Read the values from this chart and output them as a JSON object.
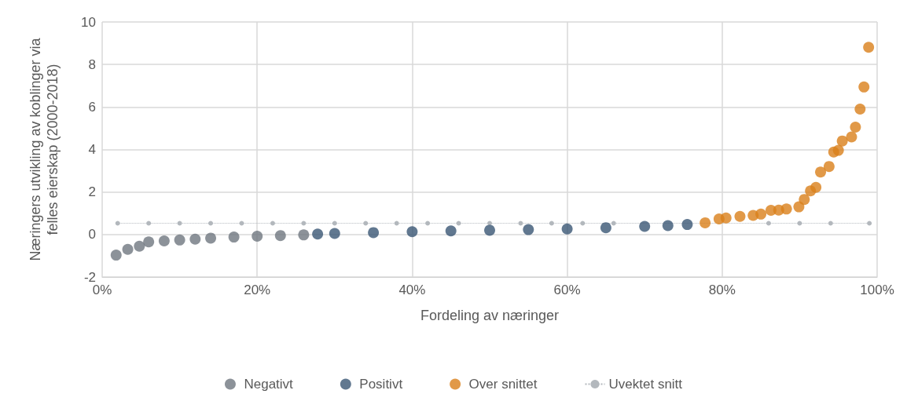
{
  "chart_data": {
    "type": "scatter",
    "xlabel": "Fordeling av næringer",
    "ylabel": "Næringers utvikling av koblinger via\nfelles eierskap (2000-2018)",
    "xlim": [
      0,
      100
    ],
    "xticks": [
      {
        "value": 0,
        "label": "0%"
      },
      {
        "value": 20,
        "label": "20%"
      },
      {
        "value": 40,
        "label": "40%"
      },
      {
        "value": 60,
        "label": "60%"
      },
      {
        "value": 80,
        "label": "80%"
      },
      {
        "value": 100,
        "label": "100%"
      }
    ],
    "ylim": [
      -2,
      10
    ],
    "yticks": [
      -2,
      0,
      2,
      4,
      6,
      8,
      10
    ],
    "grid": true,
    "legend": "bottom",
    "marker": "circle",
    "series": [
      {
        "name": "Negativt",
        "color": "#6f7780",
        "x": [
          1.8,
          3.3,
          4.8,
          6,
          8,
          10,
          12,
          14,
          17,
          20,
          23,
          26
        ],
        "values": [
          -0.97,
          -0.7,
          -0.55,
          -0.35,
          -0.3,
          -0.26,
          -0.22,
          -0.17,
          -0.12,
          -0.08,
          -0.05,
          -0.02
        ]
      },
      {
        "name": "Positivt",
        "color": "#3a5674",
        "x": [
          27.8,
          30,
          35,
          40,
          45,
          50,
          55,
          60,
          65,
          70,
          73,
          75.5
        ],
        "values": [
          0.02,
          0.05,
          0.09,
          0.13,
          0.17,
          0.2,
          0.23,
          0.26,
          0.32,
          0.38,
          0.42,
          0.47
        ]
      },
      {
        "name": "Over snittet",
        "color": "#d97f1a",
        "x": [
          77.8,
          79.6,
          80.5,
          82.3,
          84,
          85,
          86.3,
          87.3,
          88.3,
          89.9,
          90.6,
          91.4,
          92.1,
          92.7,
          93.8,
          94.4,
          95,
          95.5,
          96.7,
          97.2,
          97.8,
          98.3,
          98.9
        ],
        "values": [
          0.55,
          0.73,
          0.78,
          0.85,
          0.9,
          0.96,
          1.14,
          1.15,
          1.2,
          1.3,
          1.65,
          2.05,
          2.22,
          2.94,
          3.2,
          3.88,
          3.96,
          4.4,
          4.59,
          5.05,
          5.9,
          6.94,
          8.81
        ]
      },
      {
        "name": "Uvektet snitt",
        "type": "line",
        "line_style": "dotted",
        "color": "#b3b8bd",
        "x": [
          2,
          6,
          10,
          14,
          18,
          22,
          26,
          30,
          34,
          38,
          42,
          46,
          50,
          54,
          58,
          62,
          66,
          86,
          90,
          94,
          99
        ],
        "values": [
          0.53,
          0.53,
          0.53,
          0.53,
          0.53,
          0.53,
          0.53,
          0.53,
          0.53,
          0.53,
          0.53,
          0.53,
          0.53,
          0.53,
          0.53,
          0.53,
          0.53,
          0.53,
          0.53,
          0.53,
          0.53
        ]
      }
    ]
  }
}
